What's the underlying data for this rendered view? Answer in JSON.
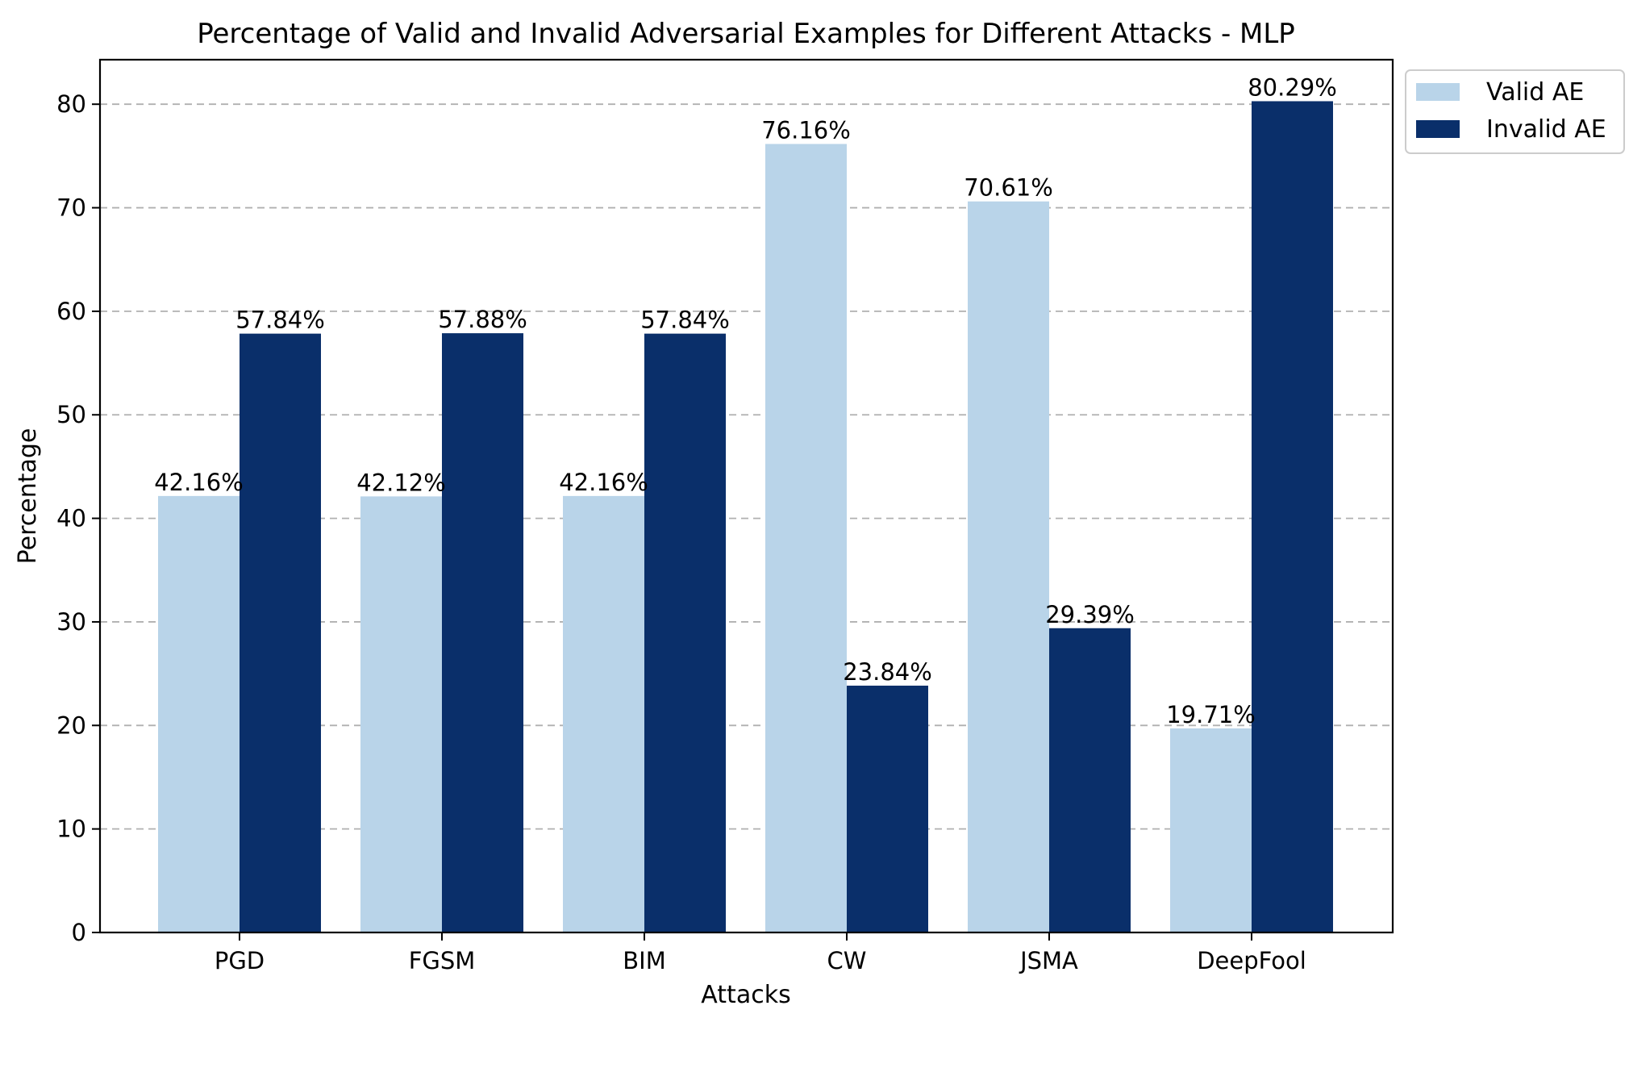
{
  "chart_data": {
    "type": "bar",
    "title": "Percentage of Valid and Invalid Adversarial Examples for Different Attacks - MLP",
    "xlabel": "Attacks",
    "ylabel": "Percentage",
    "categories": [
      "PGD",
      "FGSM",
      "BIM",
      "CW",
      "JSMA",
      "DeepFool"
    ],
    "series": [
      {
        "name": "Valid AE",
        "color": "#b9d4e9",
        "values": [
          42.16,
          42.12,
          42.16,
          76.16,
          70.61,
          19.71
        ],
        "labels": [
          "42.16%",
          "42.12%",
          "42.16%",
          "76.16%",
          "70.61%",
          "19.71%"
        ]
      },
      {
        "name": "Invalid AE",
        "color": "#0a2f6a",
        "values": [
          57.84,
          57.88,
          57.84,
          23.84,
          29.39,
          80.29
        ],
        "labels": [
          "57.84%",
          "57.88%",
          "57.84%",
          "23.84%",
          "29.39%",
          "80.29%"
        ]
      }
    ],
    "ylim": [
      0,
      84.3
    ],
    "yticks": [
      0,
      10,
      20,
      30,
      40,
      50,
      60,
      70,
      80
    ],
    "grid": "y-dashed",
    "legend_position": "outside-top-right"
  }
}
